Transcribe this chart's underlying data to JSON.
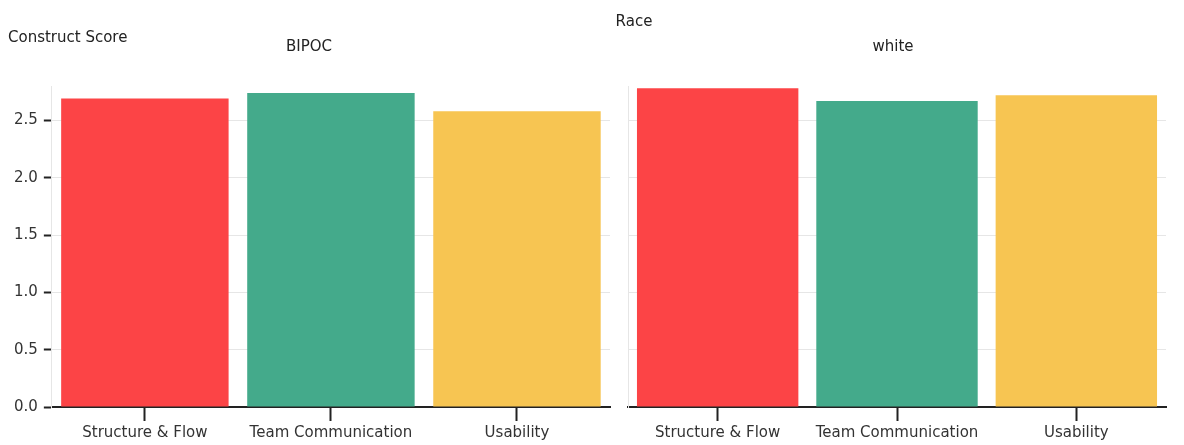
{
  "chart_data": [
    {
      "type": "bar",
      "title": "BIPOC",
      "ylabel": "Construct Score",
      "annotations": [
        "Race"
      ],
      "categories": [
        "Structure & Flow",
        "Team Communication",
        "Usability"
      ],
      "values": [
        2.69,
        2.74,
        2.58
      ],
      "colors": [
        "#fc4446",
        "#44aa8b",
        "#f7c552"
      ],
      "ylim": [
        0,
        2.8
      ],
      "yticks": [
        {
          "value": 0,
          "label": "0.0"
        },
        0.5,
        {
          "value": 1,
          "label": "1.0"
        },
        1.5,
        {
          "value": 2,
          "label": "2.0"
        },
        2.5
      ],
      "grid": "y",
      "legend": false
    },
    {
      "type": "bar",
      "title": "white",
      "categories": [
        "Structure & Flow",
        "Team Communication",
        "Usability"
      ],
      "values": [
        2.78,
        2.67,
        2.72
      ],
      "colors": [
        "#fc4446",
        "#44aa8b",
        "#f7c552"
      ],
      "ylim": [
        0,
        2.8
      ],
      "yticks": [
        0,
        0.5,
        1,
        1.5,
        2,
        2.5
      ],
      "grid": "y",
      "legend": false,
      "tick_labels": "x"
    }
  ]
}
